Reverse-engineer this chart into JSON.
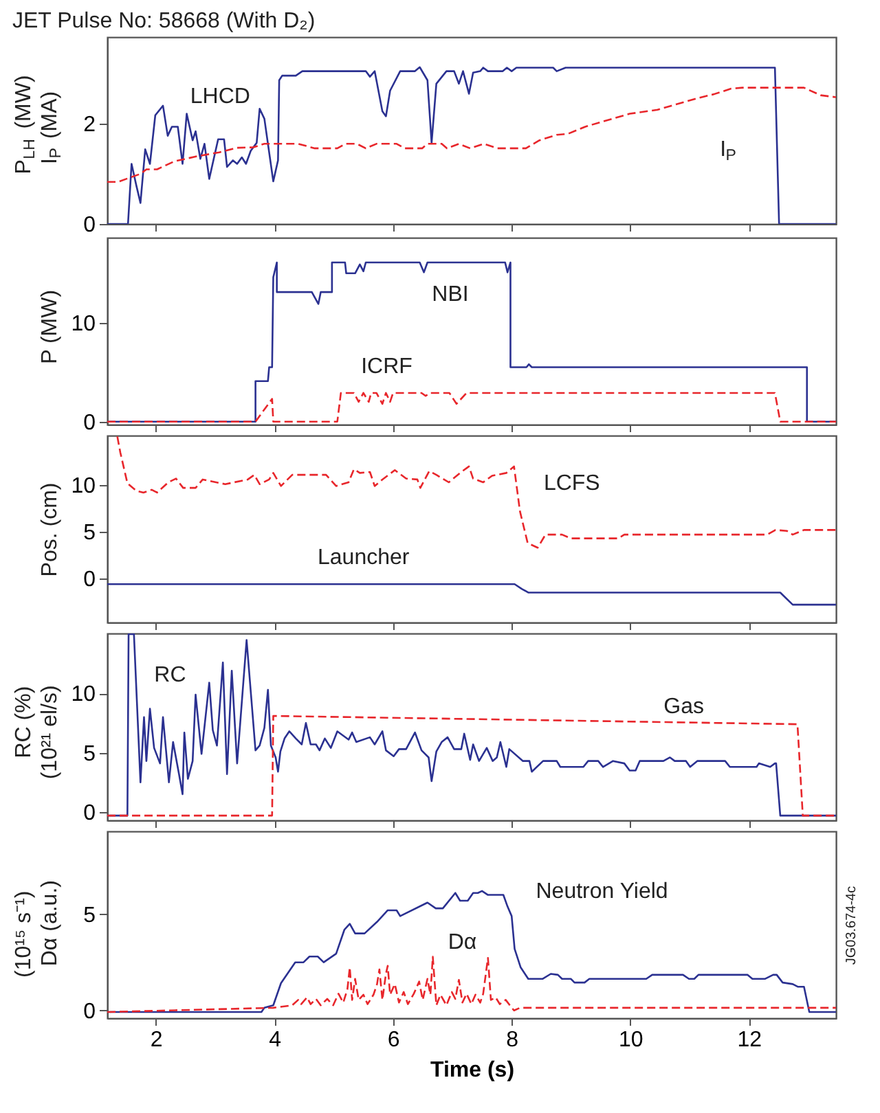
{
  "chart_data": [
    {
      "type": "line",
      "title": "JET Pulse No: 58668 (With D₂)",
      "ylabel": "P$_{LH}$ (MW)\nI$_{P}$ (MA)",
      "xlim": [
        1.18,
        13.47
      ],
      "xticks": [
        2,
        4,
        6,
        8,
        10,
        12
      ],
      "ylim": [
        0,
        3.73
      ],
      "yticks": [
        0,
        2
      ],
      "tick_labels": "y",
      "series": [
        {
          "color": "#2b3191",
          "line_style": "solid",
          "x": [
            1.18,
            1.53,
            1.59,
            1.67,
            1.74,
            1.82,
            1.9,
            1.99,
            2.12,
            2.2,
            2.27,
            2.37,
            2.45,
            2.52,
            2.62,
            2.67,
            2.75,
            2.82,
            2.9,
            3.05,
            3.15,
            3.2,
            3.3,
            3.37,
            3.45,
            3.52,
            3.6,
            3.7,
            3.75,
            3.83,
            3.98,
            4.06,
            4.08,
            4.13,
            4.36,
            4.47,
            5.54,
            5.61,
            5.69,
            5.82,
            5.88,
            5.95,
            6.12,
            6.37,
            6.45,
            6.58,
            6.65,
            6.73,
            6.9,
            7.03,
            7.11,
            7.18,
            7.28,
            7.35,
            7.47,
            7.52,
            7.6,
            7.85,
            7.92,
            8.0,
            8.08,
            8.7,
            8.76,
            8.91,
            12.44,
            12.51,
            13.47
          ],
          "values": [
            0,
            0,
            1.2,
            0.77,
            0.42,
            1.49,
            1.2,
            2.17,
            2.36,
            1.76,
            1.94,
            1.94,
            1.2,
            2.2,
            1.67,
            1.85,
            1.3,
            1.6,
            0.9,
            1.69,
            1.69,
            1.14,
            1.27,
            1.2,
            1.33,
            1.2,
            1.46,
            1.62,
            2.3,
            2.1,
            0.85,
            1.27,
            2.87,
            2.96,
            2.96,
            3.05,
            3.05,
            2.94,
            3.05,
            2.25,
            2.15,
            2.66,
            3.05,
            3.05,
            3.13,
            2.87,
            1.62,
            2.8,
            3.05,
            3.05,
            2.8,
            3.05,
            2.6,
            3.02,
            3.05,
            3.12,
            3.05,
            3.05,
            3.12,
            3.05,
            3.12,
            3.12,
            3.05,
            3.12,
            3.12,
            0,
            0
          ]
        },
        {
          "color": "#e8262b",
          "line_style": "dashed",
          "x": [
            1.18,
            1.36,
            1.74,
            1.84,
            2.02,
            2.31,
            2.69,
            3.07,
            3.36,
            3.64,
            3.83,
            4.4,
            4.68,
            5.06,
            5.2,
            5.39,
            5.54,
            5.72,
            6.06,
            6.2,
            6.49,
            6.58,
            6.82,
            6.91,
            7.11,
            7.3,
            7.53,
            7.76,
            8.24,
            8.47,
            8.76,
            8.95,
            9.24,
            9.52,
            9.99,
            10.46,
            10.84,
            11.13,
            11.41,
            11.7,
            11.89,
            12.93,
            13.21,
            13.47
          ],
          "values": [
            0.84,
            0.84,
            1.0,
            1.09,
            1.09,
            1.25,
            1.35,
            1.43,
            1.52,
            1.53,
            1.6,
            1.6,
            1.51,
            1.51,
            1.6,
            1.6,
            1.51,
            1.6,
            1.6,
            1.51,
            1.51,
            1.6,
            1.6,
            1.51,
            1.6,
            1.51,
            1.6,
            1.51,
            1.51,
            1.67,
            1.78,
            1.8,
            1.94,
            2.04,
            2.2,
            2.28,
            2.41,
            2.51,
            2.59,
            2.7,
            2.72,
            2.72,
            2.57,
            2.53
          ]
        }
      ],
      "annotations": [
        "LHCD",
        "I$_{P}$"
      ]
    },
    {
      "type": "line",
      "ylabel": "P (MW)",
      "xlim": [
        1.18,
        13.47
      ],
      "xticks": [
        2,
        4,
        6,
        8,
        10,
        12
      ],
      "ylim": [
        -0.3,
        18.6
      ],
      "yticks": [
        0,
        10
      ],
      "tick_labels": "y",
      "series": [
        {
          "color": "#2b3191",
          "line_style": "solid",
          "x": [
            1.18,
            3.68,
            3.68,
            3.89,
            3.91,
            3.96,
            3.98,
            4.04,
            4.04,
            4.63,
            4.74,
            4.78,
            4.97,
            4.97,
            5.19,
            5.21,
            5.36,
            5.44,
            5.5,
            5.54,
            6.45,
            6.52,
            6.58,
            7.89,
            7.93,
            7.98,
            7.98,
            8.25,
            8.29,
            8.34,
            12.98,
            12.98,
            13.47
          ],
          "values": [
            0,
            0,
            4.1,
            4.1,
            5.5,
            5.5,
            14.6,
            16.1,
            13.1,
            13.1,
            11.9,
            13.1,
            13.1,
            16.1,
            16.1,
            15.0,
            15.0,
            15.9,
            15.2,
            16.1,
            16.1,
            15.1,
            16.1,
            16.1,
            15.1,
            16.1,
            5.5,
            5.5,
            5.8,
            5.5,
            5.5,
            0,
            0
          ]
        },
        {
          "color": "#e8262b",
          "line_style": "dashed",
          "x": [
            1.18,
            3.68,
            3.96,
            3.98,
            5.06,
            5.12,
            5.34,
            5.42,
            5.5,
            5.59,
            5.63,
            5.72,
            5.82,
            5.88,
            5.95,
            6.0,
            6.48,
            6.55,
            6.62,
            6.95,
            7.07,
            7.24,
            12.44,
            12.53,
            13.47
          ],
          "values": [
            0,
            0,
            2.3,
            0,
            0,
            2.9,
            2.9,
            2.0,
            2.9,
            2.0,
            2.9,
            2.9,
            1.8,
            2.9,
            2.0,
            2.9,
            2.9,
            2.6,
            2.9,
            2.9,
            1.8,
            2.9,
            2.9,
            0,
            0
          ]
        }
      ],
      "annotations": [
        "NBI",
        "ICRF"
      ]
    },
    {
      "type": "line",
      "ylabel": "Pos. (cm)",
      "xlim": [
        1.18,
        13.47
      ],
      "xticks": [
        2,
        4,
        6,
        8,
        10,
        12
      ],
      "ylim": [
        -4.7,
        15.3
      ],
      "yticks": [
        0,
        5,
        10
      ],
      "tick_labels": "y",
      "series": [
        {
          "color": "#2b3191",
          "line_style": "solid",
          "x": [
            1.18,
            8.05,
            8.17,
            8.28,
            12.53,
            12.74,
            13.47
          ],
          "values": [
            -0.6,
            -0.6,
            -1.1,
            -1.5,
            -1.5,
            -2.8,
            -2.8
          ]
        },
        {
          "color": "#e8262b",
          "line_style": "dashed",
          "x": [
            1.35,
            1.4,
            1.52,
            1.67,
            1.79,
            1.93,
            2.02,
            2.21,
            2.34,
            2.46,
            2.67,
            2.79,
            3.17,
            3.55,
            3.66,
            3.75,
            3.91,
            3.98,
            4.11,
            4.3,
            4.87,
            5.04,
            5.25,
            5.34,
            5.44,
            5.61,
            5.69,
            5.82,
            6.03,
            6.22,
            6.41,
            6.46,
            6.61,
            6.73,
            6.94,
            7.13,
            7.28,
            7.35,
            7.52,
            7.67,
            7.91,
            8.04,
            8.14,
            8.27,
            8.44,
            8.57,
            8.85,
            9.0,
            9.8,
            9.9,
            12.31,
            12.45,
            12.64,
            12.74,
            12.93,
            13.47
          ],
          "values": [
            15.2,
            13.5,
            10.2,
            9.4,
            9.2,
            9.5,
            9.2,
            10.3,
            10.7,
            9.7,
            9.7,
            10.6,
            10.1,
            10.6,
            11.1,
            10.1,
            10.6,
            11.3,
            9.9,
            11.1,
            11.1,
            9.9,
            10.3,
            11.7,
            11.3,
            11.4,
            9.9,
            10.6,
            11.6,
            10.7,
            10.6,
            9.7,
            11.5,
            11.1,
            10.3,
            11.3,
            12.0,
            10.7,
            10.3,
            11.0,
            11.3,
            12.0,
            7.2,
            3.8,
            3.3,
            4.7,
            4.7,
            4.3,
            4.3,
            4.7,
            4.7,
            5.2,
            5.1,
            4.7,
            5.2,
            5.2
          ]
        }
      ],
      "annotations": [
        "LCFS",
        "Launcher"
      ]
    },
    {
      "type": "line",
      "ylabel": "RC (%)\n(10²¹ el/s)",
      "xlim": [
        1.18,
        13.47
      ],
      "xticks": [
        2,
        4,
        6,
        8,
        10,
        12
      ],
      "ylim": [
        -0.7,
        15.05
      ],
      "yticks": [
        0,
        5,
        10
      ],
      "tick_labels": "y",
      "series": [
        {
          "color": "#2b3191",
          "line_style": "solid",
          "x": [
            1.18,
            1.52,
            1.54,
            1.63,
            1.74,
            1.8,
            1.84,
            1.9,
            1.97,
            2.07,
            2.12,
            2.22,
            2.29,
            2.39,
            2.45,
            2.48,
            2.54,
            2.62,
            2.67,
            2.77,
            2.9,
            2.96,
            3.03,
            3.13,
            3.2,
            3.28,
            3.37,
            3.53,
            3.68,
            3.75,
            3.83,
            3.89,
            3.94,
            4.02,
            4.06,
            4.1,
            4.17,
            4.25,
            4.36,
            4.46,
            4.53,
            4.61,
            4.7,
            4.76,
            4.85,
            4.95,
            5.06,
            5.25,
            5.31,
            5.38,
            5.61,
            5.69,
            5.82,
            5.88,
            6.01,
            6.1,
            6.22,
            6.37,
            6.48,
            6.6,
            6.65,
            6.73,
            6.82,
            6.92,
            7.03,
            7.15,
            7.2,
            7.3,
            7.35,
            7.45,
            7.58,
            7.68,
            7.75,
            7.81,
            7.91,
            7.96,
            8.19,
            8.3,
            8.34,
            8.53,
            8.76,
            8.82,
            9.21,
            9.29,
            9.46,
            9.54,
            9.71,
            9.9,
            9.99,
            10.09,
            10.16,
            10.56,
            10.67,
            10.75,
            10.94,
            11.01,
            11.13,
            11.6,
            11.68,
            12.13,
            12.17,
            12.36,
            12.44,
            12.46,
            12.53,
            13.47
          ],
          "values": [
            -0.3,
            -0.3,
            15.0,
            15.0,
            2.5,
            8.0,
            4.3,
            8.7,
            5.4,
            4.1,
            8.0,
            2.5,
            5.9,
            3.2,
            1.5,
            6.7,
            2.8,
            4.3,
            9.9,
            4.9,
            10.9,
            6.9,
            5.6,
            12.6,
            3.2,
            11.9,
            4.1,
            14.5,
            5.2,
            5.6,
            7.1,
            10.3,
            5.6,
            4.6,
            3.4,
            5.1,
            6.2,
            6.8,
            6.2,
            5.7,
            7.5,
            5.7,
            5.7,
            5.2,
            6.2,
            5.4,
            6.8,
            6.1,
            6.7,
            5.9,
            6.3,
            5.7,
            6.8,
            5.2,
            4.7,
            5.3,
            5.3,
            6.7,
            5.2,
            4.6,
            2.6,
            5.1,
            5.9,
            6.3,
            5.3,
            5.3,
            6.6,
            4.4,
            5.7,
            4.3,
            5.4,
            4.3,
            4.6,
            5.9,
            3.8,
            5.3,
            4.3,
            4.3,
            3.4,
            4.3,
            4.3,
            3.8,
            3.8,
            4.3,
            4.3,
            3.8,
            4.3,
            4.1,
            3.5,
            3.5,
            4.3,
            4.3,
            4.6,
            4.3,
            4.3,
            3.8,
            4.3,
            4.3,
            3.8,
            3.8,
            4.1,
            3.8,
            4.1,
            4.1,
            -0.3,
            -0.3
          ]
        },
        {
          "color": "#e8262b",
          "line_style": "dashed",
          "x": [
            1.18,
            3.96,
            3.98,
            12.82,
            12.91,
            13.47
          ],
          "values": [
            -0.3,
            -0.3,
            8.1,
            7.4,
            -0.3,
            -0.3
          ]
        }
      ],
      "annotations": [
        "RC",
        "Gas"
      ]
    },
    {
      "type": "line",
      "xlabel": "Time (s)",
      "ylabel": "(10¹⁵ s⁻¹)\nDα (a.u.)",
      "xlim": [
        1.18,
        13.47
      ],
      "xticks": [
        2,
        4,
        6,
        8,
        10,
        12
      ],
      "ylim": [
        -0.4,
        9.3
      ],
      "yticks": [
        0,
        5
      ],
      "series": [
        {
          "color": "#2b3191",
          "line_style": "solid",
          "x": [
            1.18,
            3.78,
            3.83,
            3.98,
            4.11,
            4.35,
            4.49,
            4.59,
            4.73,
            4.83,
            5.04,
            5.18,
            5.27,
            5.36,
            5.52,
            5.73,
            5.91,
            6.06,
            6.12,
            6.58,
            6.72,
            6.84,
            7.05,
            7.13,
            7.26,
            7.35,
            7.43,
            7.5,
            7.6,
            7.86,
            7.93,
            8.0,
            8.05,
            8.15,
            8.28,
            8.52,
            8.66,
            8.78,
            8.85,
            9.0,
            9.06,
            9.23,
            9.31,
            10.27,
            10.37,
            10.89,
            10.99,
            11.08,
            11.15,
            11.98,
            12.06,
            12.27,
            12.41,
            12.47,
            12.57,
            12.74,
            12.83,
            12.93,
            13.02,
            13.47
          ],
          "values": [
            -0.08,
            -0.08,
            0.14,
            0.27,
            1.42,
            2.5,
            2.5,
            2.8,
            2.8,
            2.5,
            2.95,
            4.2,
            4.5,
            4.0,
            4.0,
            4.6,
            5.2,
            5.2,
            4.9,
            5.6,
            5.3,
            5.3,
            6.1,
            5.7,
            5.7,
            6.1,
            6.1,
            6.2,
            6.0,
            6.0,
            5.4,
            4.9,
            3.2,
            2.25,
            1.64,
            1.64,
            1.9,
            1.85,
            1.64,
            1.64,
            1.45,
            1.45,
            1.64,
            1.64,
            1.85,
            1.85,
            1.64,
            1.64,
            1.85,
            1.85,
            1.64,
            1.64,
            1.85,
            1.85,
            1.45,
            1.37,
            1.23,
            1.23,
            -0.08,
            -0.08
          ]
        },
        {
          "color": "#e8262b",
          "line_style": "dashed",
          "x": [
            1.18,
            3.98,
            4.3,
            4.4,
            4.45,
            4.55,
            4.61,
            4.7,
            4.78,
            4.89,
            4.99,
            5.08,
            5.16,
            5.23,
            5.27,
            5.31,
            5.36,
            5.42,
            5.5,
            5.57,
            5.67,
            5.73,
            5.77,
            5.82,
            5.88,
            5.91,
            5.95,
            6.03,
            6.1,
            6.18,
            6.25,
            6.35,
            6.44,
            6.5,
            6.58,
            6.63,
            6.67,
            6.73,
            6.8,
            6.9,
            6.99,
            7.05,
            7.11,
            7.17,
            7.24,
            7.32,
            7.39,
            7.47,
            7.52,
            7.6,
            7.65,
            7.73,
            7.8,
            7.9,
            7.97,
            8.04,
            8.14,
            13.47
          ],
          "values": [
            -0.08,
            0.14,
            0.27,
            0.55,
            0.33,
            0.68,
            0.33,
            0.6,
            0.27,
            0.6,
            0.27,
            0.87,
            0.41,
            1.1,
            2.24,
            0.55,
            1.64,
            0.55,
            0.82,
            0.33,
            0.82,
            1.37,
            2.13,
            0.55,
            1.91,
            2.32,
            0.82,
            1.37,
            0.41,
            0.96,
            0.33,
            0.87,
            1.5,
            0.55,
            1.64,
            0.82,
            2.79,
            0.27,
            0.82,
            0.27,
            0.96,
            0.6,
            1.59,
            0.41,
            0.87,
            0.33,
            0.82,
            0.41,
            0.87,
            2.73,
            0.55,
            0.68,
            0.33,
            0.55,
            0.27,
            0,
            0.14,
            0.14
          ]
        }
      ],
      "annotations": [
        "Neutron Yield",
        "Dα",
        "JG03.674-4c"
      ]
    }
  ]
}
